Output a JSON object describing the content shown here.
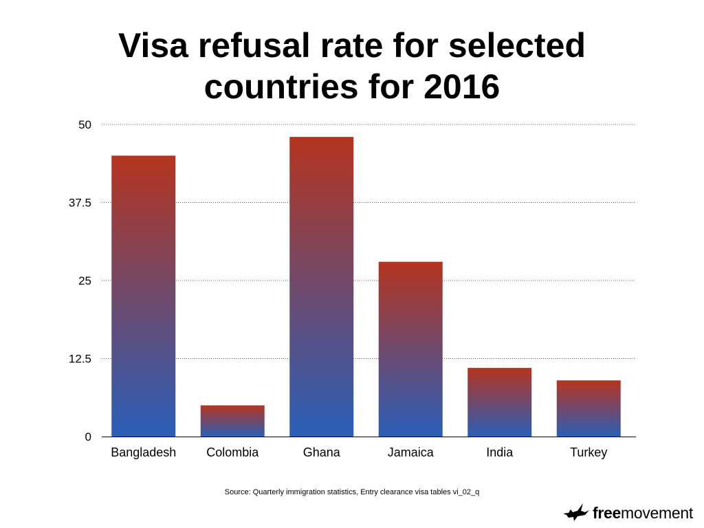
{
  "chart_data": {
    "type": "bar",
    "title_lines": [
      "Visa refusal rate for selected",
      "countries for 2016"
    ],
    "categories": [
      "Bangladesh",
      "Colombia",
      "Ghana",
      "Jamaica",
      "India",
      "Turkey"
    ],
    "values": [
      45,
      5,
      48,
      28,
      11,
      9
    ],
    "ylim": [
      0,
      50
    ],
    "yticks": [
      0,
      12.5,
      25,
      37.5,
      50
    ],
    "ytick_labels": [
      "0",
      "12.5",
      "25",
      "37.5",
      "50"
    ],
    "grid": true,
    "grid_style": "dotted",
    "xlabel": "",
    "ylabel": "",
    "bar_gradient": {
      "top": "#b5341f",
      "bottom": "#2a5fb8"
    }
  },
  "source": "Source: Quarterly immigration statistics, Entry clearance visa tables vi_02_q",
  "brand": {
    "icon": "bird-icon",
    "bold": "free",
    "regular": "movement"
  }
}
